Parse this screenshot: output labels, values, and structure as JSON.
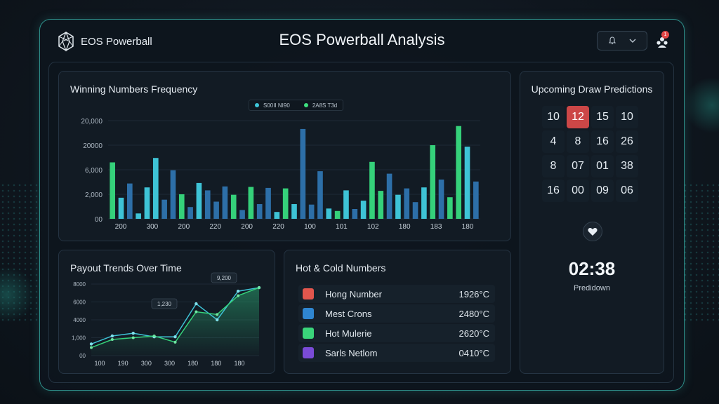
{
  "header": {
    "logo_text": "EOS Powerball",
    "title": "EOS Powerball Analysis",
    "notification_count": "1"
  },
  "frequency_panel": {
    "title": "Winning Numbers Frequency",
    "legend": [
      {
        "label": "S00II NI90",
        "color": "#3ec6d8"
      },
      {
        "label": "2A8S T3d",
        "color": "#3ee07e"
      }
    ]
  },
  "payout_panel": {
    "title": "Payout Trends Over Time",
    "annotations": [
      "1,230",
      "9,200"
    ]
  },
  "hot_cold": {
    "title": "Hot & Cold Numbers",
    "rows": [
      {
        "name": "Hong Number",
        "value": "1926°C",
        "color": "#e2564d"
      },
      {
        "name": "Mest Crons",
        "value": "2480°C",
        "color": "#2f86d1"
      },
      {
        "name": "Hot Mulerie",
        "value": "2620°C",
        "color": "#3ad47a"
      },
      {
        "name": "Sarls Netlom",
        "value": "0410°C",
        "color": "#7a4bd6"
      }
    ]
  },
  "predictions": {
    "title": "Upcoming Draw Predictions",
    "numbers": [
      "10",
      "12",
      "15",
      "10",
      "4",
      "8",
      "16",
      "26",
      "8",
      "07",
      "01",
      "38",
      "16",
      "00",
      "09",
      "06"
    ],
    "active_index": 1,
    "countdown": "02:38",
    "countdown_label": "Predidown"
  },
  "chart_data": [
    {
      "type": "bar",
      "title": "Winning Numbers Frequency",
      "y_tick_labels": [
        "20,000",
        "20000",
        "6,000",
        "2,000",
        "00"
      ],
      "x_tick_labels": [
        "200",
        "300",
        "200",
        "220",
        "200",
        "220",
        "100",
        "101",
        "102",
        "180",
        "183",
        "180"
      ],
      "ylim": [
        0,
        20000
      ],
      "values": [
        11500,
        4300,
        7200,
        1100,
        6400,
        12400,
        3900,
        9900,
        5000,
        2400,
        7300,
        5800,
        3500,
        6600,
        4900,
        1800,
        6500,
        3000,
        6300,
        1400,
        6200,
        3000,
        18300,
        2900,
        9700,
        2100,
        1600,
        5800,
        2000,
        3700,
        11600,
        5700,
        9200,
        4900,
        6200,
        3400,
        6400,
        15000,
        8000,
        4400,
        18900,
        14700,
        7600
      ],
      "colors": [
        "g",
        "c",
        "b",
        "c",
        "c",
        "c",
        "b",
        "b",
        "g",
        "b",
        "c",
        "b",
        "b",
        "b",
        "g",
        "b",
        "g",
        "b",
        "b",
        "c",
        "g",
        "c",
        "b",
        "b",
        "b",
        "c",
        "g",
        "c",
        "b",
        "c",
        "g",
        "g",
        "b",
        "c",
        "b",
        "b",
        "c",
        "g",
        "b",
        "g",
        "g",
        "c",
        "b"
      ]
    },
    {
      "type": "area",
      "title": "Payout Trends Over Time",
      "y_tick_labels": [
        "8000",
        "6000",
        "4000",
        "1,000",
        "00"
      ],
      "x_tick_labels": [
        "100",
        "190",
        "300",
        "300",
        "180",
        "180",
        "180"
      ],
      "ylim": [
        0,
        8000
      ],
      "series": [
        {
          "name": "series-1",
          "values": [
            1300,
            2200,
            2500,
            2100,
            2100,
            5800,
            4000,
            7200,
            7600
          ]
        },
        {
          "name": "series-2",
          "values": [
            900,
            1800,
            2000,
            2200,
            1500,
            4900,
            4600,
            6700,
            7600
          ]
        }
      ]
    }
  ]
}
